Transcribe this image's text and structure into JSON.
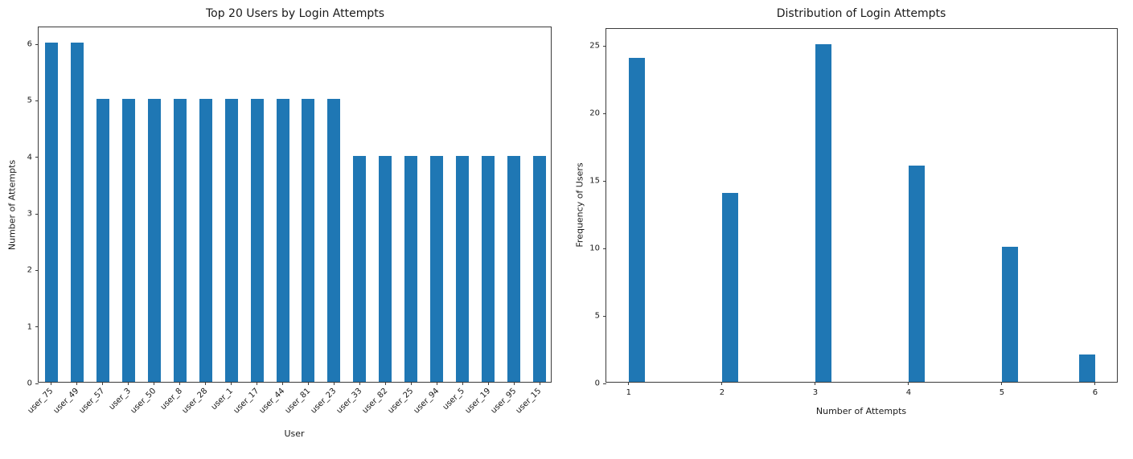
{
  "figure": {
    "background": "#ffffff",
    "bar_color": "#1f77b4",
    "axis_color": "#3b3b3b",
    "text_color": "#1a1a1a"
  },
  "chart_data": [
    {
      "type": "bar",
      "title": "Top 20 Users by Login Attempts",
      "xlabel": "User",
      "ylabel": "Number of Attempts",
      "categories": [
        "user_75",
        "user_49",
        "user_57",
        "user_3",
        "user_50",
        "user_8",
        "user_28",
        "user_1",
        "user_17",
        "user_44",
        "user_81",
        "user_23",
        "user_33",
        "user_82",
        "user_25",
        "user_94",
        "user_5",
        "user_19",
        "user_95",
        "user_15"
      ],
      "values": [
        6,
        6,
        5,
        5,
        5,
        5,
        5,
        5,
        5,
        5,
        5,
        5,
        4,
        4,
        4,
        4,
        4,
        4,
        4,
        4
      ],
      "yticks": [
        0,
        1,
        2,
        3,
        4,
        5,
        6
      ],
      "ylim": [
        0,
        6.3
      ],
      "xtick_rotation": 45,
      "grid": false,
      "legend": null
    },
    {
      "type": "bar",
      "title": "Distribution of Login Attempts",
      "xlabel": "Number of Attempts",
      "ylabel": "Frequency of Users",
      "categories": [
        "1",
        "2",
        "3",
        "4",
        "5",
        "6"
      ],
      "values": [
        24,
        14,
        25,
        16,
        10,
        2
      ],
      "yticks": [
        0,
        5,
        10,
        15,
        20,
        25
      ],
      "ylim": [
        0,
        26.25
      ],
      "xtick_rotation": 0,
      "grid": false,
      "legend": null
    }
  ]
}
